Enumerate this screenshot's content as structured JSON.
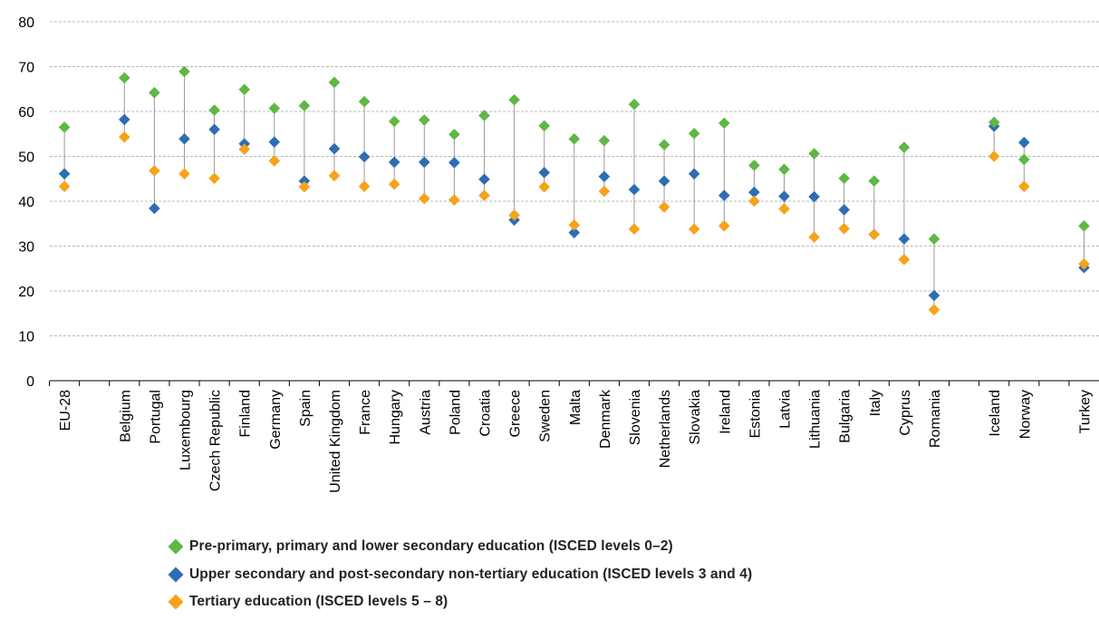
{
  "chart_data": {
    "type": "scatter",
    "title": "",
    "xlabel": "",
    "ylabel": "",
    "ylim": [
      0,
      80
    ],
    "yticks": [
      0,
      10,
      20,
      30,
      40,
      50,
      60,
      70,
      80
    ],
    "grid": true,
    "legend_position": "bottom",
    "categories": [
      "EU-28",
      "Belgium",
      "Portugal",
      "Luxembourg",
      "Czech Republic",
      "Finland",
      "Germany",
      "Spain",
      "United Kingdom",
      "France",
      "Hungary",
      "Austria",
      "Poland",
      "Croatia",
      "Greece",
      "Sweden",
      "Malta",
      "Denmark",
      "Slovenia",
      "Netherlands",
      "Slovakia",
      "Ireland",
      "Estonia",
      "Latvia",
      "Lithuania",
      "Bulgaria",
      "Italy",
      "Cyprus",
      "Romania",
      "Iceland",
      "Norway",
      "Turkey"
    ],
    "series": [
      {
        "name": "Pre-primary, primary and lower secondary education (ISCED levels 0–2)",
        "color": "#5fb745",
        "values": [
          56.5,
          67.5,
          64.2,
          68.9,
          60.3,
          64.9,
          60.7,
          61.3,
          66.5,
          62.2,
          57.8,
          58.1,
          54.9,
          59.1,
          62.6,
          56.8,
          53.9,
          53.5,
          61.6,
          52.6,
          55.1,
          57.4,
          48.0,
          47.1,
          50.6,
          45.1,
          44.5,
          52.0,
          31.6,
          57.6,
          49.3,
          34.5
        ]
      },
      {
        "name": "Upper secondary and post-secondary non-tertiary education (ISCED levels 3 and 4)",
        "color": "#2e6db4",
        "values": [
          46.1,
          58.2,
          38.4,
          53.9,
          56.0,
          52.8,
          53.2,
          44.5,
          51.7,
          49.9,
          48.7,
          48.7,
          48.6,
          44.9,
          35.8,
          46.4,
          33.0,
          45.5,
          42.6,
          44.5,
          46.1,
          41.3,
          42.0,
          41.1,
          41.0,
          38.1,
          32.6,
          31.6,
          19.0,
          56.7,
          53.1,
          25.2
        ]
      },
      {
        "name": "Tertiary education (ISCED levels 5 – 8)",
        "color": "#f7a21b",
        "values": [
          43.3,
          54.3,
          46.8,
          46.1,
          45.1,
          51.6,
          49.0,
          43.2,
          45.7,
          43.3,
          43.8,
          40.6,
          40.3,
          41.3,
          36.9,
          43.2,
          34.7,
          42.2,
          33.8,
          38.7,
          33.8,
          34.5,
          40.0,
          38.3,
          32.0,
          33.9,
          32.6,
          27.0,
          15.8,
          50.0,
          43.3,
          26.0
        ]
      }
    ]
  }
}
